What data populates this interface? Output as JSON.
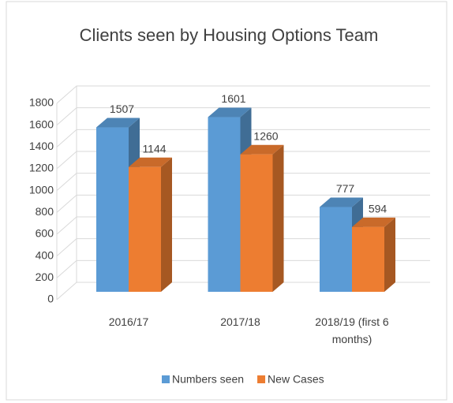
{
  "chart_data": {
    "type": "bar",
    "title": "Clients seen by Housing Options Team",
    "categories": [
      "2016/17",
      "2017/18",
      "2018/19 (first 6 months)"
    ],
    "series": [
      {
        "name": "Numbers seen",
        "color": "#5b9bd5",
        "values": [
          1507,
          1601,
          777
        ]
      },
      {
        "name": "New Cases",
        "color": "#ed7d31",
        "values": [
          1144,
          1260,
          594
        ]
      }
    ],
    "ylim": [
      0,
      1800
    ],
    "yticks": [
      0,
      200,
      400,
      600,
      800,
      1000,
      1200,
      1400,
      1600,
      1800
    ],
    "grid": true,
    "legend": "bottom"
  }
}
